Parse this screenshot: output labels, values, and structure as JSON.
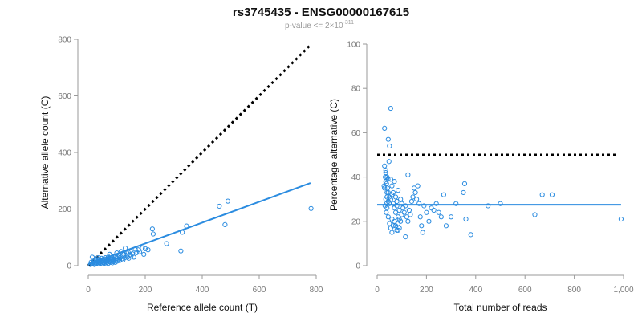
{
  "header": {
    "title": "rs3745435 - ENSG00000167615",
    "subtitle_base": "p-value <= 2×10",
    "subtitle_exp": "-311"
  },
  "colors": {
    "points": "#2b8ce0",
    "fit_line": "#2b8ce0",
    "reference_line": "#000000",
    "axis": "#9a9a9a",
    "tick_text": "#777777"
  },
  "chart_data": [
    {
      "type": "scatter",
      "name": "allele-count",
      "xlabel": "Reference allele count (T)",
      "ylabel": "Alternative allele count (C)",
      "xlim": [
        0,
        800
      ],
      "ylim": [
        0,
        800
      ],
      "xticks": [
        0,
        200,
        400,
        600,
        800
      ],
      "xtick_labels": [
        "0",
        "200",
        "400",
        "600",
        "800"
      ],
      "yticks": [
        0,
        200,
        400,
        600,
        800
      ],
      "ytick_labels": [
        "0",
        "200",
        "400",
        "600",
        "800"
      ],
      "grid": false,
      "points": [
        [
          8,
          4
        ],
        [
          10,
          12
        ],
        [
          12,
          6
        ],
        [
          14,
          30
        ],
        [
          15,
          8
        ],
        [
          18,
          10
        ],
        [
          20,
          16
        ],
        [
          22,
          4
        ],
        [
          24,
          20
        ],
        [
          25,
          6
        ],
        [
          26,
          12
        ],
        [
          28,
          18
        ],
        [
          30,
          8
        ],
        [
          30,
          24
        ],
        [
          32,
          14
        ],
        [
          34,
          10
        ],
        [
          35,
          28
        ],
        [
          36,
          6
        ],
        [
          38,
          16
        ],
        [
          40,
          12
        ],
        [
          40,
          22
        ],
        [
          42,
          8
        ],
        [
          44,
          18
        ],
        [
          45,
          14
        ],
        [
          46,
          26
        ],
        [
          48,
          10
        ],
        [
          50,
          20
        ],
        [
          50,
          6
        ],
        [
          52,
          16
        ],
        [
          54,
          12
        ],
        [
          55,
          24
        ],
        [
          56,
          8
        ],
        [
          58,
          18
        ],
        [
          60,
          14
        ],
        [
          60,
          28
        ],
        [
          62,
          10
        ],
        [
          64,
          22
        ],
        [
          65,
          16
        ],
        [
          66,
          12
        ],
        [
          68,
          20
        ],
        [
          70,
          8
        ],
        [
          70,
          30
        ],
        [
          72,
          14
        ],
        [
          74,
          18
        ],
        [
          75,
          40
        ],
        [
          76,
          24
        ],
        [
          78,
          12
        ],
        [
          80,
          20
        ],
        [
          80,
          35
        ],
        [
          82,
          16
        ],
        [
          84,
          28
        ],
        [
          85,
          10
        ],
        [
          86,
          22
        ],
        [
          88,
          14
        ],
        [
          90,
          30
        ],
        [
          90,
          18
        ],
        [
          92,
          24
        ],
        [
          95,
          12
        ],
        [
          96,
          32
        ],
        [
          98,
          20
        ],
        [
          100,
          26
        ],
        [
          100,
          45
        ],
        [
          102,
          16
        ],
        [
          105,
          30
        ],
        [
          106,
          22
        ],
        [
          108,
          38
        ],
        [
          110,
          18
        ],
        [
          112,
          28
        ],
        [
          115,
          50
        ],
        [
          118,
          24
        ],
        [
          120,
          34
        ],
        [
          122,
          20
        ],
        [
          125,
          40
        ],
        [
          128,
          28
        ],
        [
          130,
          62
        ],
        [
          132,
          36
        ],
        [
          135,
          44
        ],
        [
          138,
          30
        ],
        [
          140,
          48
        ],
        [
          142,
          26
        ],
        [
          145,
          38
        ],
        [
          148,
          52
        ],
        [
          150,
          34
        ],
        [
          155,
          42
        ],
        [
          160,
          30
        ],
        [
          165,
          58
        ],
        [
          170,
          46
        ],
        [
          175,
          56
        ],
        [
          180,
          48
        ],
        [
          190,
          62
        ],
        [
          195,
          40
        ],
        [
          200,
          60
        ],
        [
          210,
          56
        ],
        [
          225,
          130
        ],
        [
          228,
          112
        ],
        [
          275,
          78
        ],
        [
          325,
          52
        ],
        [
          330,
          118
        ],
        [
          345,
          140
        ],
        [
          460,
          210
        ],
        [
          480,
          145
        ],
        [
          490,
          228
        ],
        [
          782,
          202
        ]
      ],
      "fit_line": [
        [
          0,
          5
        ],
        [
          780,
          292
        ]
      ],
      "reference_line": [
        [
          0,
          0
        ],
        [
          780,
          780
        ]
      ]
    },
    {
      "type": "scatter",
      "name": "percentage",
      "xlabel": "Total number of reads",
      "ylabel": "Percentage alternative (C)",
      "xlim": [
        0,
        1000
      ],
      "ylim": [
        0,
        100
      ],
      "xticks": [
        0,
        200,
        400,
        600,
        800,
        1000
      ],
      "xtick_labels": [
        "0",
        "200",
        "400",
        "600",
        "800",
        "1,000"
      ],
      "yticks": [
        0,
        20,
        40,
        60,
        80,
        100
      ],
      "ytick_labels": [
        "0",
        "20",
        "40",
        "60",
        "80",
        "100"
      ],
      "grid": false,
      "points": [
        [
          30,
          62
        ],
        [
          55,
          71
        ],
        [
          45,
          57
        ],
        [
          50,
          54
        ],
        [
          48,
          47
        ],
        [
          35,
          42
        ],
        [
          40,
          40
        ],
        [
          38,
          37
        ],
        [
          42,
          35
        ],
        [
          45,
          33
        ],
        [
          50,
          31
        ],
        [
          55,
          30
        ],
        [
          60,
          32
        ],
        [
          65,
          28
        ],
        [
          70,
          26
        ],
        [
          75,
          24
        ],
        [
          80,
          27
        ],
        [
          85,
          22
        ],
        [
          90,
          25
        ],
        [
          95,
          20
        ],
        [
          100,
          23
        ],
        [
          30,
          45
        ],
        [
          35,
          30
        ],
        [
          40,
          26
        ],
        [
          45,
          22
        ],
        [
          50,
          19
        ],
        [
          55,
          17
        ],
        [
          60,
          15
        ],
        [
          65,
          18
        ],
        [
          70,
          20
        ],
        [
          75,
          18
        ],
        [
          80,
          16
        ],
        [
          85,
          19
        ],
        [
          90,
          21
        ],
        [
          30,
          35
        ],
        [
          35,
          38
        ],
        [
          40,
          33
        ],
        [
          45,
          29
        ],
        [
          50,
          28
        ],
        [
          55,
          39
        ],
        [
          60,
          36
        ],
        [
          65,
          33
        ],
        [
          70,
          38
        ],
        [
          75,
          31
        ],
        [
          80,
          29
        ],
        [
          85,
          34
        ],
        [
          95,
          30
        ],
        [
          100,
          28
        ],
        [
          105,
          26
        ],
        [
          110,
          24
        ],
        [
          115,
          27
        ],
        [
          120,
          22
        ],
        [
          125,
          20
        ],
        [
          130,
          25
        ],
        [
          135,
          23
        ],
        [
          140,
          29
        ],
        [
          145,
          31
        ],
        [
          150,
          35
        ],
        [
          155,
          33
        ],
        [
          160,
          30
        ],
        [
          165,
          36
        ],
        [
          170,
          28
        ],
        [
          175,
          22
        ],
        [
          180,
          18
        ],
        [
          185,
          15
        ],
        [
          190,
          27
        ],
        [
          200,
          24
        ],
        [
          210,
          20
        ],
        [
          220,
          26
        ],
        [
          230,
          25
        ],
        [
          240,
          28
        ],
        [
          250,
          24
        ],
        [
          260,
          22
        ],
        [
          270,
          32
        ],
        [
          280,
          18
        ],
        [
          300,
          22
        ],
        [
          320,
          28
        ],
        [
          350,
          33
        ],
        [
          355,
          37
        ],
        [
          360,
          21
        ],
        [
          380,
          14
        ],
        [
          450,
          27
        ],
        [
          500,
          28
        ],
        [
          640,
          23
        ],
        [
          670,
          32
        ],
        [
          710,
          32
        ],
        [
          990,
          21
        ],
        [
          115,
          13
        ],
        [
          125,
          41
        ],
        [
          90,
          17
        ],
        [
          85,
          16
        ],
        [
          60,
          21
        ],
        [
          40,
          31
        ],
        [
          35,
          43
        ],
        [
          32,
          27
        ],
        [
          28,
          36
        ],
        [
          33,
          40
        ],
        [
          37,
          24
        ],
        [
          38,
          28
        ],
        [
          44,
          39
        ]
      ],
      "fit_line": [
        [
          0,
          27.5
        ],
        [
          990,
          27.5
        ]
      ],
      "reference_line": [
        [
          0,
          50
        ],
        [
          980,
          50
        ]
      ]
    }
  ]
}
